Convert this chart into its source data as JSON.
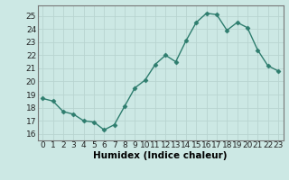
{
  "x": [
    0,
    1,
    2,
    3,
    4,
    5,
    6,
    7,
    8,
    9,
    10,
    11,
    12,
    13,
    14,
    15,
    16,
    17,
    18,
    19,
    20,
    21,
    22,
    23
  ],
  "y": [
    18.7,
    18.5,
    17.7,
    17.5,
    17.0,
    16.9,
    16.3,
    16.7,
    18.1,
    19.5,
    20.1,
    21.3,
    22.0,
    21.5,
    23.1,
    24.5,
    25.2,
    25.1,
    23.9,
    24.5,
    24.1,
    22.4,
    21.2,
    20.8
  ],
  "line_color": "#2e7d6e",
  "marker": "D",
  "marker_size": 2.5,
  "bg_color": "#cce8e4",
  "grid_color": "#b8d4d0",
  "xlabel": "Humidex (Indice chaleur)",
  "xlim": [
    -0.5,
    23.5
  ],
  "ylim": [
    15.5,
    25.8
  ],
  "yticks": [
    16,
    17,
    18,
    19,
    20,
    21,
    22,
    23,
    24,
    25
  ],
  "xticks": [
    0,
    1,
    2,
    3,
    4,
    5,
    6,
    7,
    8,
    9,
    10,
    11,
    12,
    13,
    14,
    15,
    16,
    17,
    18,
    19,
    20,
    21,
    22,
    23
  ],
  "linewidth": 1.0,
  "tick_fontsize": 6.5,
  "xlabel_fontsize": 7.5
}
